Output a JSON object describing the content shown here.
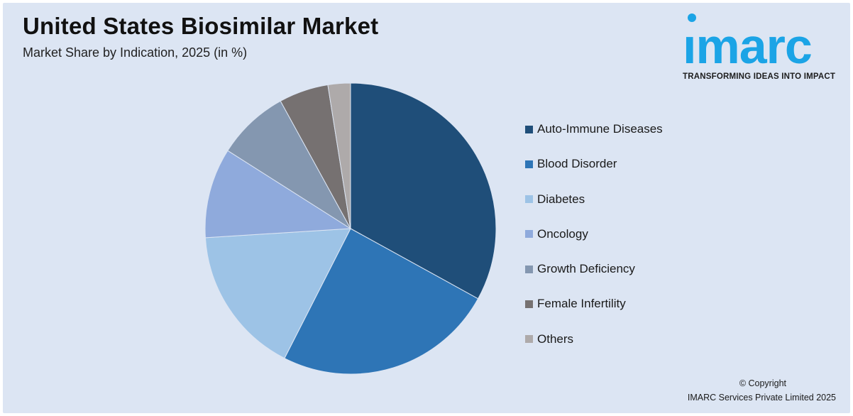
{
  "header": {
    "title": "United States Biosimilar Market",
    "subtitle": "Market Share by Indication, 2025 (in %)"
  },
  "logo": {
    "word": "ımarc",
    "tagline": "TRANSFORMING IDEAS INTO IMPACT",
    "color": "#1ba4e6"
  },
  "footer": {
    "copyright": "© Copyright",
    "company": "IMARC Services Private Limited 2025"
  },
  "chart_data": {
    "type": "pie",
    "title": "United States Biosimilar Market",
    "subtitle": "Market Share by Indication, 2025 (in %)",
    "legend_position": "right",
    "start_angle_deg": 0,
    "direction": "clockwise",
    "categories": [
      "Auto-Immune Diseases",
      "Blood Disorder",
      "Diabetes",
      "Oncology",
      "Growth Deficiency",
      "Female Infertility",
      "Others"
    ],
    "values": [
      33,
      24.5,
      16.5,
      10,
      8,
      5.5,
      2.5
    ],
    "colors": [
      "#1f4e79",
      "#2e75b6",
      "#9dc3e6",
      "#8faadc",
      "#8497b0",
      "#767171",
      "#aeaaaa"
    ]
  }
}
